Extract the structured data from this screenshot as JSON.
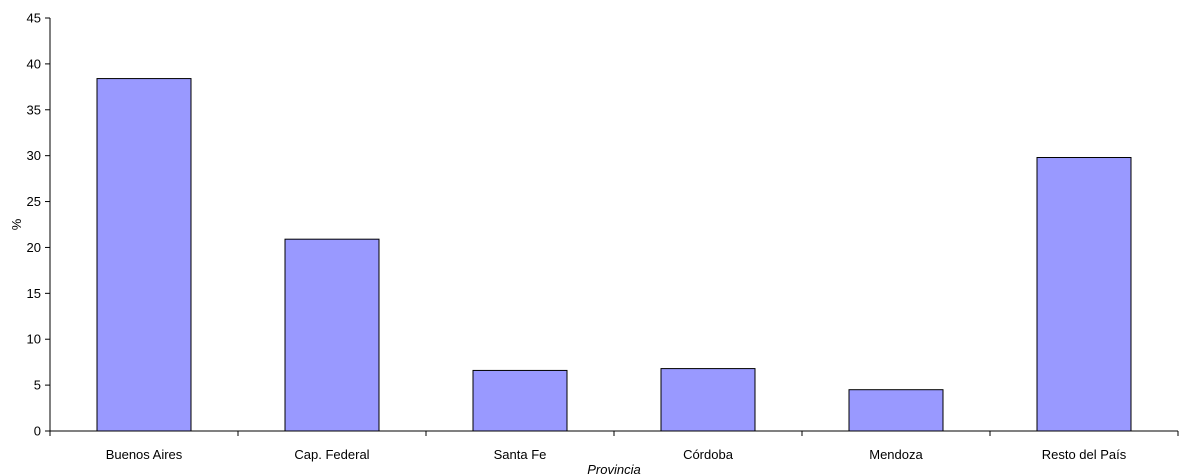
{
  "chart_data": {
    "type": "bar",
    "title": "",
    "xlabel": "Provincia",
    "ylabel": "%",
    "categories": [
      "Buenos Aires",
      "Cap. Federal",
      "Santa Fe",
      "Córdoba",
      "Mendoza",
      "Resto del País"
    ],
    "values": [
      38.4,
      20.9,
      6.6,
      6.8,
      4.5,
      29.8
    ],
    "ylim": [
      0,
      45
    ],
    "yticks": [
      0,
      5,
      10,
      15,
      20,
      25,
      30,
      35,
      40,
      45
    ],
    "grid": false,
    "legend": "none",
    "bar_color": "#9999FF",
    "bar_edge_color": "#000000"
  }
}
